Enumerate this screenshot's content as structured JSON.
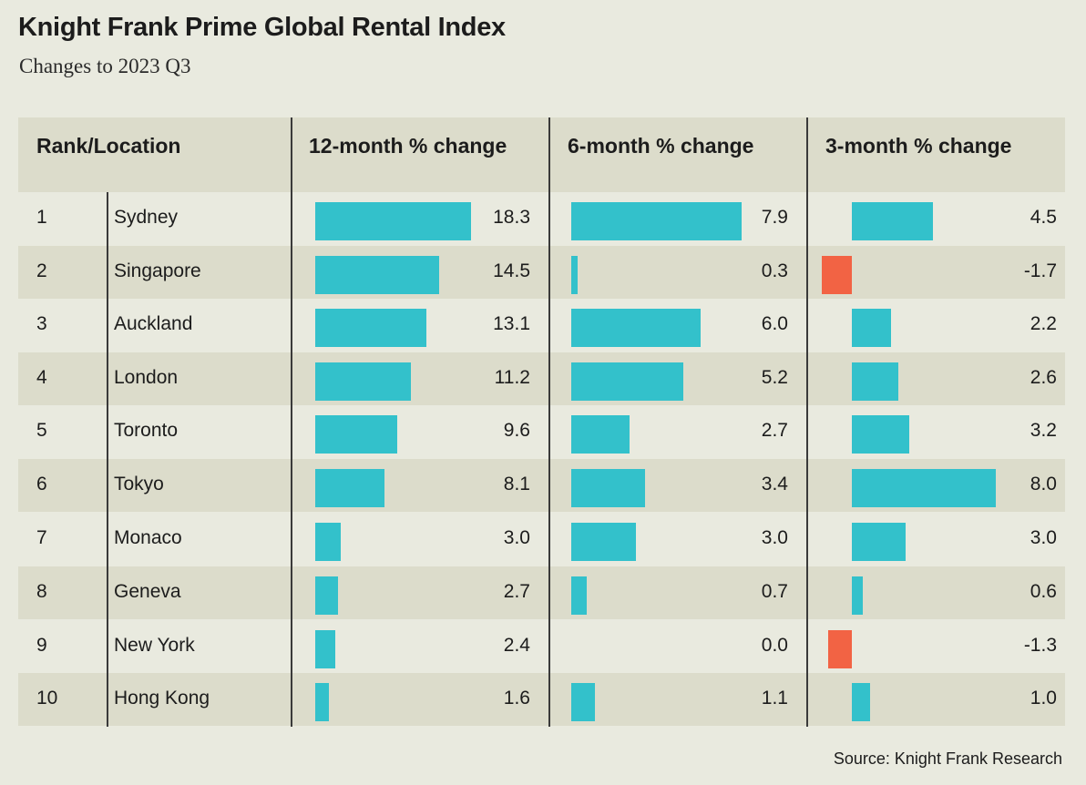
{
  "title": "Knight Frank Prime Global Rental Index",
  "subtitle": "Changes to 2023 Q3",
  "source": "Source: Knight Frank Research",
  "colors": {
    "positive": "#33c1cb",
    "negative": "#f26344",
    "shaded_row": "#dcdccb",
    "background": "#e9eadf"
  },
  "chart_data": {
    "type": "bar",
    "title": "Knight Frank Prime Global Rental Index",
    "subtitle": "Changes to 2023 Q3",
    "headers": [
      "Rank/Location",
      "12-month % change",
      "6-month % change",
      "3-month % change"
    ],
    "rows": [
      {
        "rank": "1",
        "location": "Sydney",
        "m12": "18.3",
        "m6": "7.9",
        "m3": "4.5"
      },
      {
        "rank": "2",
        "location": "Singapore",
        "m12": "14.5",
        "m6": "0.3",
        "m3": "-1.7"
      },
      {
        "rank": "3",
        "location": "Auckland",
        "m12": "13.1",
        "m6": "6.0",
        "m3": "2.2"
      },
      {
        "rank": "4",
        "location": "London",
        "m12": "11.2",
        "m6": "5.2",
        "m3": "2.6"
      },
      {
        "rank": "5",
        "location": "Toronto",
        "m12": "9.6",
        "m6": "2.7",
        "m3": "3.2"
      },
      {
        "rank": "6",
        "location": "Tokyo",
        "m12": "8.1",
        "m6": "3.4",
        "m3": "8.0"
      },
      {
        "rank": "7",
        "location": "Monaco",
        "m12": "3.0",
        "m6": "3.0",
        "m3": "3.0"
      },
      {
        "rank": "8",
        "location": "Geneva",
        "m12": "2.7",
        "m6": "0.7",
        "m3": "0.6"
      },
      {
        "rank": "9",
        "location": "New York",
        "m12": "2.4",
        "m6": "0.0",
        "m3": "-1.3"
      },
      {
        "rank": "10",
        "location": "Hong Kong",
        "m12": "1.6",
        "m6": "1.1",
        "m3": "1.0"
      }
    ]
  }
}
